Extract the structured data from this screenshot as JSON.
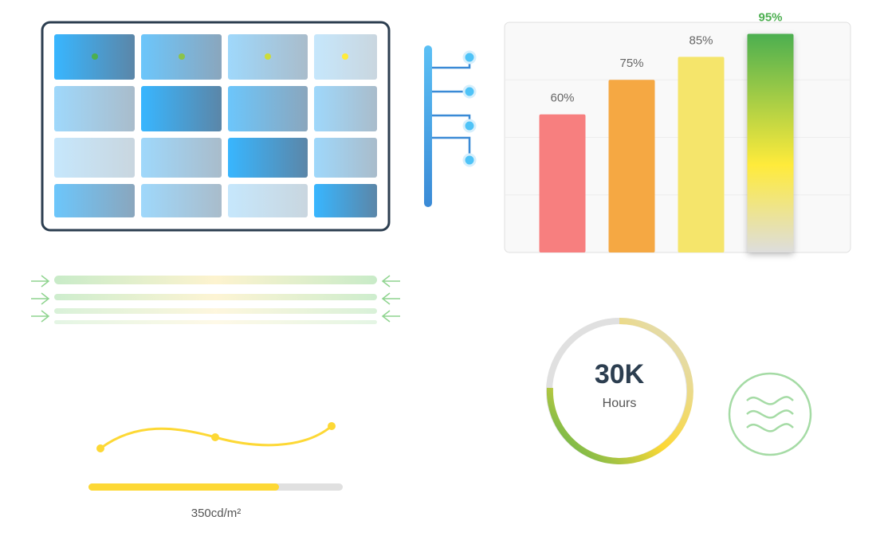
{
  "chart_data": {
    "type": "bar",
    "values": [
      60,
      75,
      85,
      95
    ],
    "value_labels": [
      "60%",
      "75%",
      "85%",
      "95%"
    ],
    "colors": [
      "#f77f7f",
      "#f5a843",
      "#f5e56b",
      "#4caf50"
    ],
    "label_colors": [
      "#666666",
      "#666666",
      "#666666",
      "#4caf50"
    ],
    "ylim": [
      0,
      100
    ],
    "grid": true
  },
  "gauge": {
    "value": "30K",
    "label": "Hours"
  },
  "brightness": {
    "label": "350cd/m²"
  }
}
